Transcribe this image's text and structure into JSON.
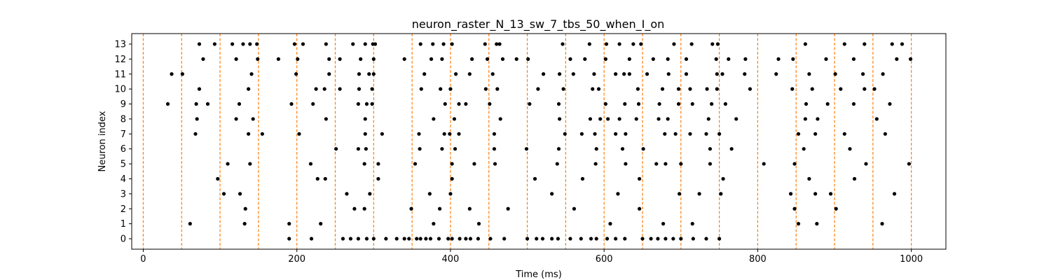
{
  "chart_data": {
    "type": "scatter",
    "title": "neuron_raster_N_13_sw_7_tbs_50_when_I_on",
    "xlabel": "Time (ms)",
    "ylabel": "Neuron index",
    "xlim": [
      -15,
      1045
    ],
    "ylim": [
      -0.7,
      13.7
    ],
    "xticks": [
      0,
      200,
      400,
      600,
      800,
      1000
    ],
    "yticks": [
      0,
      1,
      2,
      3,
      4,
      5,
      6,
      7,
      8,
      9,
      10,
      11,
      12,
      13
    ],
    "grid": false,
    "vlines": {
      "x": [
        0,
        50,
        100,
        150,
        200,
        250,
        300,
        350,
        400,
        450,
        500,
        550,
        600,
        650,
        700,
        750,
        800,
        850,
        900,
        950,
        1000
      ],
      "color": "#ff7f0e",
      "style": "dashed"
    },
    "marker_color": "#000000",
    "series": [
      {
        "neuron": 0,
        "times": [
          190,
          219,
          260,
          270,
          280,
          291,
          300,
          316,
          330,
          340,
          346,
          356,
          361,
          368,
          374,
          385,
          397,
          402,
          412,
          420,
          426,
          436,
          452,
          470,
          500,
          512,
          520,
          532,
          540,
          556,
          570,
          583,
          590,
          604,
          615,
          627,
          650,
          661,
          670,
          680,
          690,
          700,
          716,
          733,
          750
        ]
      },
      {
        "neuron": 1,
        "times": [
          61,
          132,
          190,
          231,
          378,
          437,
          608,
          677,
          715,
          853,
          877,
          962
        ]
      },
      {
        "neuron": 2,
        "times": [
          133,
          275,
          288,
          349,
          386,
          425,
          475,
          561,
          646,
          848,
          902
        ]
      },
      {
        "neuron": 3,
        "times": [
          105,
          126,
          265,
          295,
          373,
          400,
          532,
          618,
          698,
          724,
          752,
          843,
          875,
          895,
          978
        ]
      },
      {
        "neuron": 4,
        "times": [
          97,
          227,
          237,
          306,
          402,
          510,
          572,
          646,
          755,
          867,
          926
        ]
      },
      {
        "neuron": 5,
        "times": [
          110,
          139,
          218,
          288,
          306,
          354,
          402,
          431,
          458,
          539,
          589,
          628,
          668,
          680,
          700,
          738,
          808,
          848,
          941,
          997
        ]
      },
      {
        "neuron": 6,
        "times": [
          251,
          280,
          290,
          360,
          389,
          406,
          457,
          499,
          541,
          590,
          624,
          651,
          738,
          766,
          860,
          920
        ]
      },
      {
        "neuron": 7,
        "times": [
          68,
          137,
          155,
          203,
          289,
          311,
          359,
          392,
          399,
          411,
          457,
          549,
          571,
          588,
          615,
          628,
          679,
          693,
          712,
          733,
          750,
          853,
          875,
          913,
          966
        ]
      },
      {
        "neuron": 8,
        "times": [
          70,
          121,
          143,
          238,
          289,
          378,
          405,
          465,
          542,
          582,
          595,
          605,
          620,
          642,
          671,
          683,
          736,
          772,
          862,
          878,
          955
        ]
      },
      {
        "neuron": 9,
        "times": [
          32,
          69,
          84,
          125,
          193,
          221,
          280,
          291,
          298,
          393,
          411,
          420,
          451,
          503,
          541,
          602,
          627,
          645,
          672,
          697,
          715,
          740,
          758,
          863,
          891,
          925,
          972
        ]
      },
      {
        "neuron": 10,
        "times": [
          73,
          137,
          225,
          236,
          256,
          281,
          298,
          362,
          387,
          400,
          446,
          461,
          514,
          547,
          585,
          593,
          644,
          676,
          697,
          712,
          734,
          747,
          790,
          845,
          871,
          908,
          939,
          952
        ]
      },
      {
        "neuron": 11,
        "times": [
          37,
          51,
          141,
          199,
          242,
          281,
          294,
          300,
          366,
          407,
          425,
          455,
          521,
          542,
          560,
          587,
          615,
          626,
          633,
          656,
          684,
          707,
          747,
          754,
          783,
          824,
          867,
          901,
          937,
          963
        ]
      },
      {
        "neuron": 12,
        "times": [
          78,
          121,
          149,
          176,
          201,
          242,
          256,
          283,
          300,
          340,
          375,
          389,
          428,
          448,
          468,
          486,
          501,
          556,
          575,
          602,
          633,
          664,
          683,
          707,
          746,
          762,
          784,
          827,
          846,
          889,
          925,
          981,
          999
        ]
      },
      {
        "neuron": 13,
        "times": [
          73,
          93,
          116,
          130,
          139,
          148,
          197,
          208,
          238,
          273,
          289,
          299,
          302,
          361,
          377,
          391,
          402,
          445,
          460,
          464,
          546,
          581,
          603,
          620,
          638,
          648,
          691,
          714,
          741,
          748,
          862,
          913,
          939,
          975,
          988
        ]
      }
    ]
  }
}
